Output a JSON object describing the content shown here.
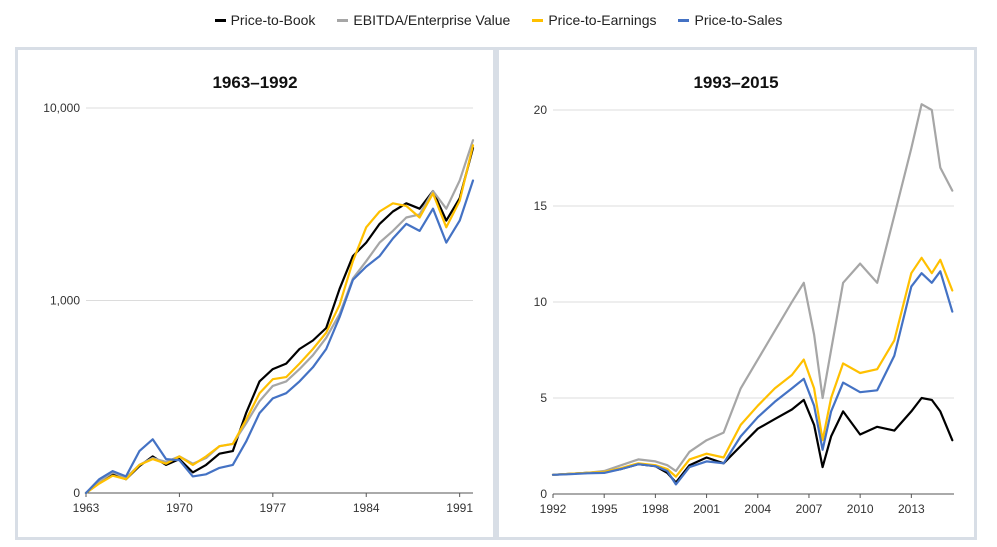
{
  "legend": [
    {
      "label": "Price-to-Book",
      "color": "#000000"
    },
    {
      "label": "EBITDA/Enterprise Value",
      "color": "#a6a6a6"
    },
    {
      "label": "Price-to-Earnings",
      "color": "#ffc000"
    },
    {
      "label": "Price-to-Sales",
      "color": "#4472c4"
    }
  ],
  "chart_data": [
    {
      "type": "line",
      "title": "1963–1992",
      "xlabel": "",
      "ylabel": "",
      "yscale": "log",
      "ylim": [
        0,
        10000
      ],
      "xlim": [
        1963,
        1992
      ],
      "yticks": [
        {
          "label": "10,000"
        },
        {
          "label": "1,000"
        },
        {
          "label": "0"
        }
      ],
      "xticks": [
        "1963",
        "1970",
        "1977",
        "1984",
        "1991"
      ],
      "x": [
        1963,
        1964,
        1965,
        1966,
        1967,
        1968,
        1969,
        1970,
        1971,
        1972,
        1973,
        1974,
        1975,
        1976,
        1977,
        1978,
        1979,
        1980,
        1981,
        1982,
        1983,
        1984,
        1985,
        1986,
        1987,
        1988,
        1989,
        1990,
        1991,
        1992
      ],
      "series": [
        {
          "name": "Price-to-Book",
          "color": "#000000",
          "values": [
            100,
            113,
            125,
            118,
            138,
            155,
            140,
            150,
            128,
            140,
            160,
            165,
            260,
            380,
            440,
            470,
            560,
            620,
            720,
            1150,
            1700,
            2000,
            2500,
            2900,
            3200,
            3000,
            3700,
            2600,
            3400,
            6200
          ]
        },
        {
          "name": "EBITDA/Enterprise Value",
          "color": "#a6a6a6",
          "values": [
            100,
            115,
            128,
            120,
            140,
            152,
            145,
            155,
            142,
            152,
            175,
            180,
            230,
            300,
            360,
            380,
            440,
            520,
            640,
            850,
            1300,
            1600,
            2000,
            2300,
            2700,
            2800,
            3700,
            3000,
            4200,
            6800
          ]
        },
        {
          "name": "Price-to-Earnings",
          "color": "#ffc000",
          "values": [
            100,
            112,
            123,
            118,
            140,
            150,
            142,
            155,
            140,
            155,
            175,
            180,
            240,
            330,
            390,
            400,
            470,
            560,
            680,
            950,
            1600,
            2400,
            2900,
            3200,
            3100,
            2700,
            3600,
            2400,
            3300,
            6400
          ]
        },
        {
          "name": "Price-to-Sales",
          "color": "#4472c4",
          "values": [
            100,
            118,
            130,
            122,
            165,
            190,
            150,
            148,
            122,
            125,
            135,
            140,
            185,
            260,
            310,
            330,
            380,
            450,
            560,
            820,
            1280,
            1500,
            1700,
            2100,
            2500,
            2300,
            3000,
            2000,
            2600,
            4200
          ]
        }
      ]
    },
    {
      "type": "line",
      "title": "1993–2015",
      "xlabel": "",
      "ylabel": "",
      "ylim": [
        0,
        20
      ],
      "xlim": [
        1992,
        2015.5
      ],
      "yticks": [
        {
          "label": "20",
          "value": 20
        },
        {
          "label": "15",
          "value": 15
        },
        {
          "label": "10",
          "value": 10
        },
        {
          "label": "5",
          "value": 5
        },
        {
          "label": "0",
          "value": 0
        }
      ],
      "xticks": [
        "1992",
        "1995",
        "1998",
        "2001",
        "2004",
        "2007",
        "2010",
        "2013"
      ],
      "x": [
        1992,
        1993,
        1994,
        1995,
        1996,
        1997,
        1998,
        1998.7,
        1999.2,
        2000,
        2001,
        2002,
        2003,
        2004,
        2005,
        2006,
        2006.7,
        2007.3,
        2007.8,
        2008.3,
        2009,
        2010,
        2011,
        2012,
        2013,
        2013.6,
        2014.2,
        2014.7,
        2015.4
      ],
      "series": [
        {
          "name": "Price-to-Book",
          "color": "#000000",
          "values": [
            1.0,
            1.05,
            1.1,
            1.15,
            1.3,
            1.55,
            1.45,
            1.1,
            0.6,
            1.5,
            1.9,
            1.6,
            2.5,
            3.4,
            3.9,
            4.4,
            4.9,
            3.6,
            1.4,
            3.0,
            4.3,
            3.1,
            3.5,
            3.3,
            4.3,
            5.0,
            4.9,
            4.3,
            2.8
          ]
        },
        {
          "name": "EBITDA/Enterprise Value",
          "color": "#a6a6a6",
          "values": [
            1.0,
            1.05,
            1.1,
            1.2,
            1.5,
            1.8,
            1.7,
            1.5,
            1.2,
            2.2,
            2.8,
            3.2,
            5.5,
            7.0,
            8.5,
            10.0,
            11.0,
            8.3,
            5.0,
            7.5,
            11.0,
            12.0,
            11.0,
            14.5,
            18.0,
            20.3,
            20.0,
            17.0,
            15.8
          ]
        },
        {
          "name": "Price-to-Earnings",
          "color": "#ffc000",
          "values": [
            1.0,
            1.05,
            1.1,
            1.15,
            1.35,
            1.6,
            1.5,
            1.3,
            0.9,
            1.8,
            2.1,
            1.9,
            3.6,
            4.6,
            5.5,
            6.2,
            7.0,
            5.5,
            2.8,
            5.0,
            6.8,
            6.3,
            6.5,
            8.0,
            11.5,
            12.3,
            11.5,
            12.2,
            10.6
          ]
        },
        {
          "name": "Price-to-Sales",
          "color": "#4472c4",
          "values": [
            1.0,
            1.03,
            1.08,
            1.1,
            1.3,
            1.55,
            1.45,
            1.2,
            0.5,
            1.4,
            1.7,
            1.6,
            3.0,
            4.0,
            4.8,
            5.5,
            6.0,
            4.6,
            2.3,
            4.3,
            5.8,
            5.3,
            5.4,
            7.2,
            10.8,
            11.5,
            11.0,
            11.6,
            9.5
          ]
        }
      ]
    }
  ]
}
